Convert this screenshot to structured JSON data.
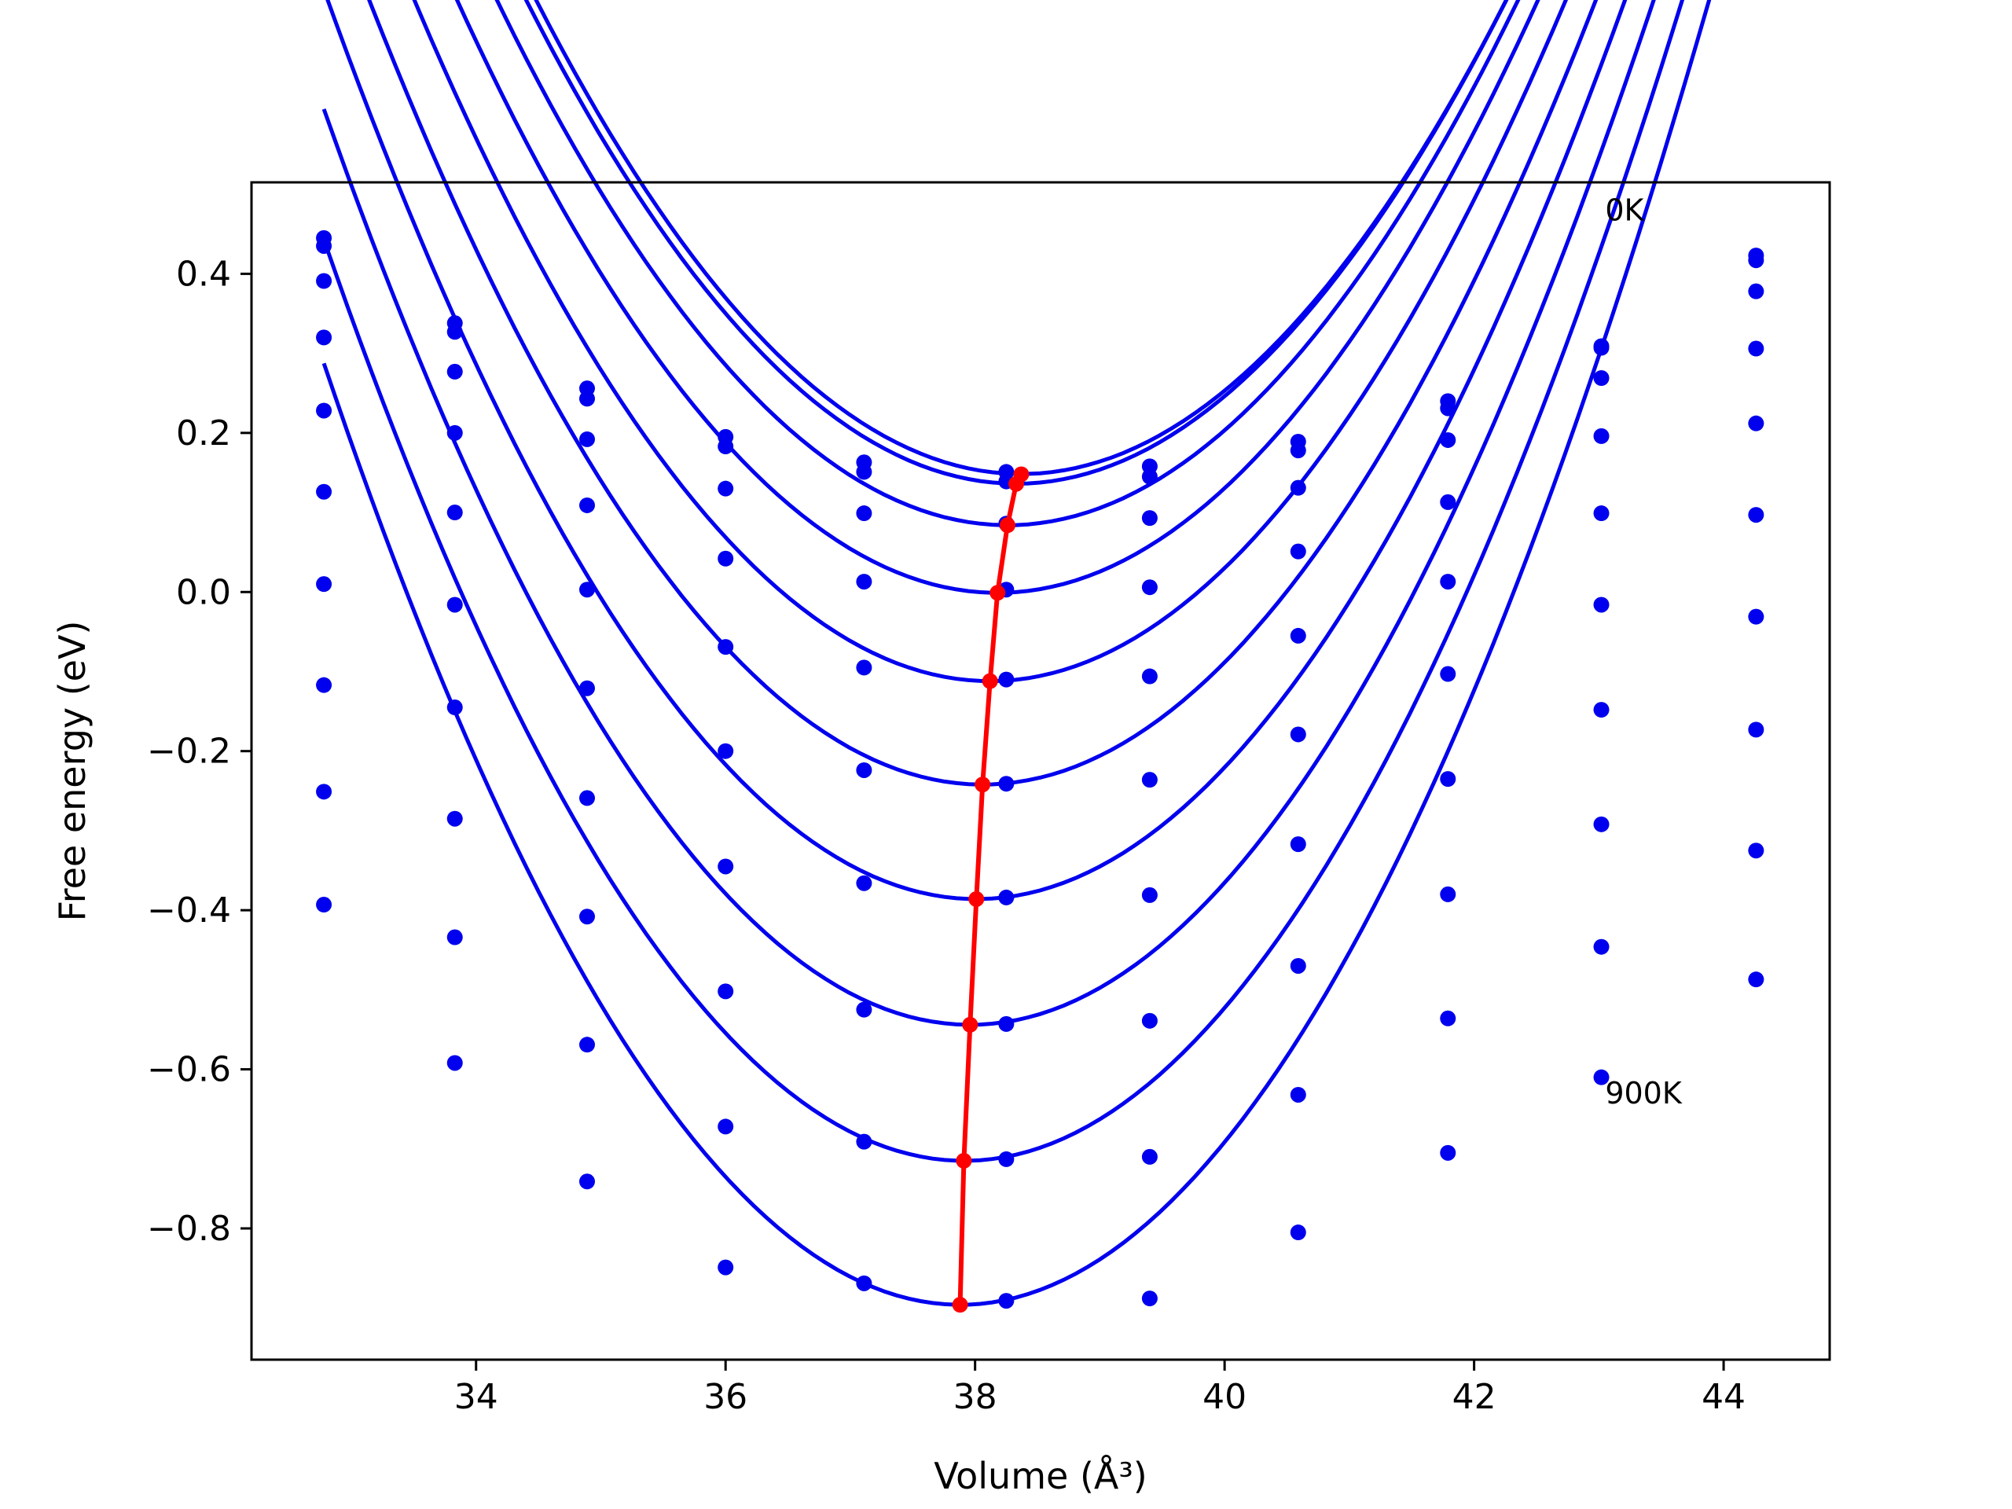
{
  "chart_data": {
    "type": "line",
    "xlabel": "Volume (Å³)",
    "ylabel": "Free energy (eV)",
    "xlim": [
      32.2,
      44.85
    ],
    "ylim": [
      -0.965,
      0.515
    ],
    "xticks": [
      34,
      36,
      38,
      40,
      42,
      44
    ],
    "yticks": [
      -0.8,
      -0.6,
      -0.4,
      -0.2,
      0.0,
      0.2,
      0.4
    ],
    "xtick_labels": [
      "34",
      "36",
      "38",
      "40",
      "42",
      "44"
    ],
    "ytick_labels": [
      "−0.8",
      "−0.6",
      "−0.4",
      "−0.2",
      "0.0",
      "0.2",
      "0.4"
    ],
    "grid": false,
    "colors": {
      "curves": "#0000ee",
      "minima": "#ff0000"
    },
    "annotations": [
      {
        "text": "0K",
        "x": 43.0,
        "y": 0.48
      },
      {
        "text": "900K",
        "x": 43.0,
        "y": -0.63
      }
    ],
    "x": [
      32.78,
      33.83,
      34.89,
      36.0,
      37.11,
      38.25,
      39.4,
      40.59,
      41.79,
      43.02,
      44.26
    ],
    "series": [
      {
        "y": [
          0.445,
          0.338,
          0.256,
          0.195,
          0.163,
          0.151,
          0.158,
          0.189,
          0.24,
          0.309,
          0.423
        ],
        "fit": [
          0.0394,
          38.37,
          0.1484
        ]
      },
      {
        "y": [
          0.435,
          0.327,
          0.243,
          0.183,
          0.151,
          0.139,
          0.145,
          0.178,
          0.231,
          0.307,
          0.417
        ],
        "fit": [
          0.0394,
          38.33,
          0.1362
        ]
      },
      {
        "y": [
          0.391,
          0.277,
          0.192,
          0.13,
          0.099,
          0.086,
          0.093,
          0.131,
          0.191,
          0.269,
          0.378
        ],
        "fit": [
          0.0394,
          38.26,
          0.084
        ]
      },
      {
        "y": [
          0.32,
          0.2,
          0.109,
          0.042,
          0.013,
          0.003,
          0.006,
          0.051,
          0.113,
          0.196,
          0.306
        ],
        "fit": [
          0.0397,
          38.18,
          -0.001
        ]
      },
      {
        "y": [
          0.228,
          0.1,
          0.003,
          -0.069,
          -0.095,
          -0.11,
          -0.106,
          -0.055,
          0.013,
          0.099,
          0.212
        ],
        "fit": [
          0.0402,
          38.12,
          -0.112
        ]
      },
      {
        "y": [
          0.126,
          -0.016,
          -0.121,
          -0.2,
          -0.224,
          -0.241,
          -0.236,
          -0.179,
          -0.103,
          -0.016,
          0.097
        ],
        "fit": [
          0.0408,
          38.06,
          -0.242
        ]
      },
      {
        "y": [
          0.01,
          -0.145,
          -0.259,
          -0.345,
          -0.366,
          -0.384,
          -0.381,
          -0.317,
          -0.235,
          -0.148,
          -0.031
        ],
        "fit": [
          0.0418,
          38.01,
          -0.386
        ]
      },
      {
        "y": [
          -0.117,
          -0.285,
          -0.408,
          -0.502,
          -0.525,
          -0.543,
          -0.539,
          -0.47,
          -0.38,
          -0.292,
          -0.173
        ],
        "fit": [
          0.0429,
          37.96,
          -0.544
        ]
      },
      {
        "y": [
          -0.251,
          -0.434,
          -0.569,
          -0.672,
          -0.691,
          -0.713,
          -0.71,
          -0.632,
          -0.536,
          -0.446,
          -0.325
        ],
        "fit": [
          0.044,
          37.91,
          -0.715
        ]
      },
      {
        "y": [
          -0.393,
          -0.592,
          -0.741,
          -0.849,
          -0.869,
          -0.891,
          -0.888,
          -0.805,
          -0.705,
          -0.61,
          -0.487
        ],
        "fit": [
          0.0455,
          37.88,
          -0.896
        ]
      }
    ],
    "minima": {
      "x": [
        38.37,
        38.33,
        38.26,
        38.18,
        38.12,
        38.06,
        38.01,
        37.96,
        37.91,
        37.88
      ],
      "y": [
        0.148,
        0.136,
        0.084,
        -0.001,
        -0.112,
        -0.242,
        -0.386,
        -0.544,
        -0.715,
        -0.896
      ]
    }
  }
}
